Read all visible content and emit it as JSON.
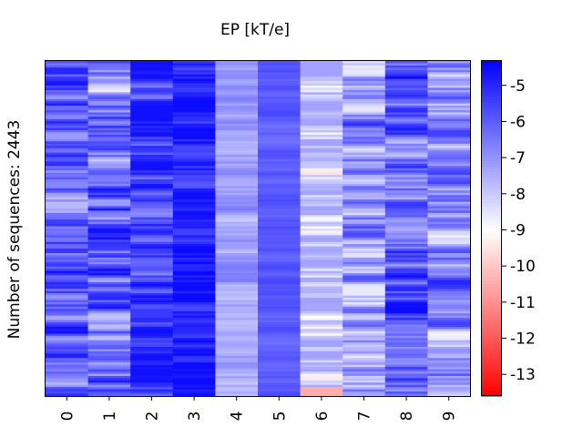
{
  "chart_data": {
    "type": "heatmap",
    "title": "EP [kT/e]",
    "ylabel": "Number of sequences: 2443",
    "xlabel": "",
    "categories": [
      "0",
      "1",
      "2",
      "3",
      "4",
      "5",
      "6",
      "7",
      "8",
      "9"
    ],
    "colorbar": {
      "min": -13.6,
      "max": -4.3,
      "center": -9,
      "ticks": [
        -5,
        -6,
        -7,
        -8,
        -9,
        -10,
        -11,
        -12,
        -13
      ],
      "tick_labels": [
        "-5",
        "-6",
        "-7",
        "-8",
        "-9",
        "-10",
        "-11",
        "-12",
        "-13"
      ],
      "colors": {
        "high": "#0000ff",
        "mid": "#ffffff",
        "low": "#ff0000"
      }
    },
    "rows": 2443,
    "column_mean_values": [
      -6.2,
      -6.3,
      -5.2,
      -4.9,
      -7.3,
      -5.9,
      -7.9,
      -7.2,
      -6.0,
      -7.0
    ],
    "column_value_range": [
      [
        -8.4,
        -4.6
      ],
      [
        -8.8,
        -4.6
      ],
      [
        -7.6,
        -4.6
      ],
      [
        -6.6,
        -4.5
      ],
      [
        -8.0,
        -6.5
      ],
      [
        -6.4,
        -5.6
      ],
      [
        -10.8,
        -7.3
      ],
      [
        -8.6,
        -4.7
      ],
      [
        -7.8,
        -4.5
      ],
      [
        -8.8,
        -5.0
      ]
    ],
    "notable": "Column 6 ends with a red band (about -10.5) for the last sequences"
  }
}
